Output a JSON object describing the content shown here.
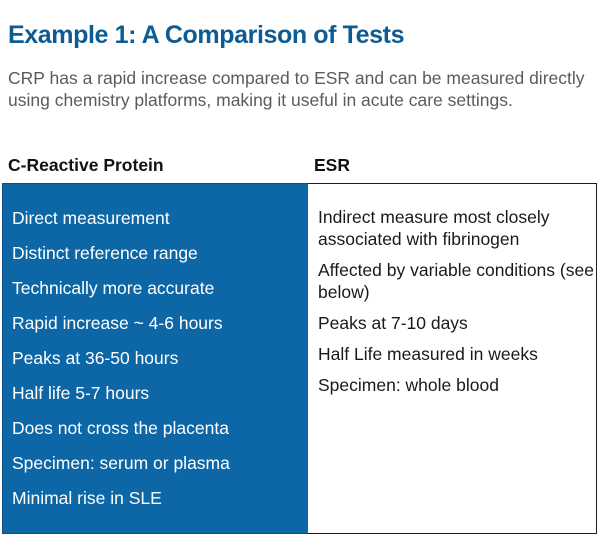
{
  "title": "Example 1: A Comparison of Tests",
  "intro": "CRP has a rapid increase compared to ESR and can be measured directly using chemistry platforms, making it useful in acute care settings.",
  "colors": {
    "title": "#0c5c93",
    "left_panel_bg": "#0d67a6",
    "left_panel_text": "#ffffff"
  },
  "columns": {
    "left_heading": "C-Reactive Protein",
    "right_heading": "ESR"
  },
  "left_items": [
    "Direct measurement",
    "Distinct reference range",
    "Technically more accurate",
    "Rapid increase ~ 4-6 hours",
    "Peaks at 36-50 hours",
    "Half life 5-7 hours",
    "Does not cross the placenta",
    "Specimen: serum or plasma",
    "Minimal rise in SLE"
  ],
  "right_items": [
    "Indirect measure most closely associated with fibrinogen",
    "Affected by variable conditions (see below)",
    "Peaks at 7-10 days",
    "Half Life measured in weeks",
    "Specimen: whole blood"
  ]
}
